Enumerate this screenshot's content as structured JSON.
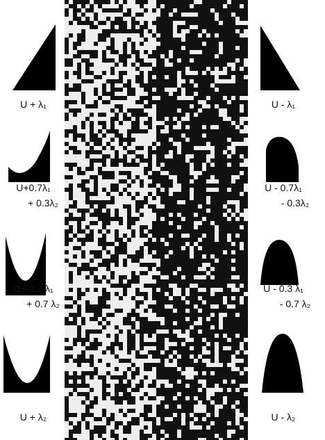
{
  "left_labels": [
    [
      "U + λ₁"
    ],
    [
      "U+0.7λ₁",
      "+ 0.3λ₂"
    ],
    [
      "U+ 0.3 λ₁",
      "+ 0.7 λ₂"
    ],
    [
      "U + λ₂"
    ]
  ],
  "right_labels": [
    [
      "U - λ₁"
    ],
    [
      "U - 0.7λ₁",
      "- 0.3λ₂"
    ],
    [
      "U - 0.3 λ₁",
      "- 0.7 λ₂"
    ],
    [
      "U - λ₂"
    ]
  ]
}
